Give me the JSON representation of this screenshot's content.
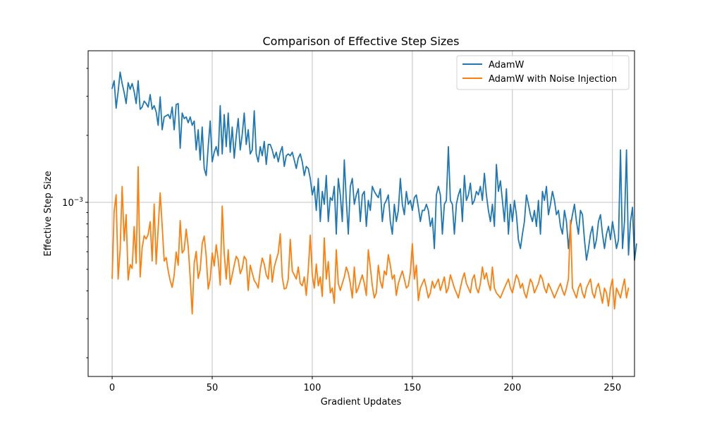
{
  "chart_data": {
    "type": "line",
    "title": "Comparison of Effective Step Sizes",
    "xlabel": "Gradient Updates",
    "ylabel": "Effective Step Size",
    "yscale": "log",
    "xlim": [
      -12,
      261
    ],
    "ylim": [
      0.000165,
      0.0048
    ],
    "x_ticks": [
      0,
      50,
      100,
      150,
      200,
      250
    ],
    "x_tick_labels": [
      "0",
      "50",
      "100",
      "150",
      "200",
      "250"
    ],
    "y_major_ticks": [
      0.001
    ],
    "y_major_tick_labels": [
      "10^-3"
    ],
    "y_minor_ticks": [
      0.0002,
      0.0003,
      0.0004,
      0.0005,
      0.0006,
      0.0007,
      0.0008,
      0.0009,
      0.002,
      0.003,
      0.004
    ],
    "grid": true,
    "legend_position": "top-right",
    "series": [
      {
        "name": "AdamW",
        "color": "#1f77b4",
        "x_start": 0,
        "values": [
          0.00325,
          0.00352,
          0.00265,
          0.00315,
          0.00385,
          0.00342,
          0.00312,
          0.00278,
          0.00345,
          0.00322,
          0.00342,
          0.00315,
          0.00278,
          0.00352,
          0.00262,
          0.00268,
          0.00285,
          0.00278,
          0.00268,
          0.00305,
          0.00262,
          0.00272,
          0.00255,
          0.00222,
          0.00298,
          0.00212,
          0.00242,
          0.00245,
          0.00248,
          0.00238,
          0.00268,
          0.00212,
          0.00275,
          0.00278,
          0.00175,
          0.00252,
          0.00238,
          0.00242,
          0.00228,
          0.00242,
          0.00222,
          0.00232,
          0.00172,
          0.00212,
          0.00155,
          0.00218,
          0.00142,
          0.00132,
          0.00178,
          0.00232,
          0.00152,
          0.00168,
          0.00178,
          0.00162,
          0.00272,
          0.00165,
          0.00248,
          0.00178,
          0.00252,
          0.00168,
          0.00218,
          0.00158,
          0.00198,
          0.00238,
          0.00172,
          0.00202,
          0.00252,
          0.00182,
          0.00212,
          0.00165,
          0.00172,
          0.00258,
          0.00165,
          0.00152,
          0.00178,
          0.00162,
          0.00188,
          0.00148,
          0.00182,
          0.00182,
          0.00172,
          0.00158,
          0.00168,
          0.00152,
          0.00168,
          0.00178,
          0.00145,
          0.00162,
          0.00165,
          0.00162,
          0.00168,
          0.00155,
          0.00142,
          0.00158,
          0.00165,
          0.00152,
          0.00132,
          0.00145,
          0.00142,
          0.00128,
          0.00108,
          0.00118,
          0.00092,
          0.00128,
          0.00082,
          0.00112,
          0.00098,
          0.00132,
          0.00082,
          0.00105,
          0.00102,
          0.00118,
          0.00072,
          0.00128,
          0.00108,
          0.00082,
          0.00155,
          0.00102,
          0.00072,
          0.00118,
          0.00128,
          0.00098,
          0.00108,
          0.00115,
          0.00082,
          0.00108,
          0.00112,
          0.00078,
          0.00102,
          0.00092,
          0.00118,
          0.00112,
          0.00108,
          0.00105,
          0.00115,
          0.00082,
          0.00098,
          0.00102,
          0.00108,
          0.00082,
          0.00072,
          0.00098,
          0.00082,
          0.00092,
          0.00128,
          0.00098,
          0.00088,
          0.00112,
          0.00098,
          0.00102,
          0.00092,
          0.00105,
          0.00108,
          0.00095,
          0.00082,
          0.00092,
          0.00092,
          0.00098,
          0.00092,
          0.00078,
          0.00085,
          0.00062,
          0.00108,
          0.00118,
          0.00108,
          0.00072,
          0.00098,
          0.00102,
          0.00178,
          0.00102,
          0.00098,
          0.00072,
          0.00098,
          0.00108,
          0.00115,
          0.00082,
          0.00132,
          0.00102,
          0.00108,
          0.00122,
          0.00098,
          0.00102,
          0.00112,
          0.00108,
          0.00118,
          0.00102,
          0.00135,
          0.00108,
          0.00092,
          0.00082,
          0.00098,
          0.00078,
          0.00148,
          0.00112,
          0.00125,
          0.00102,
          0.00082,
          0.00115,
          0.00072,
          0.00098,
          0.00082,
          0.00102,
          0.00088,
          0.00068,
          0.00062,
          0.00072,
          0.00082,
          0.00108,
          0.00098,
          0.00088,
          0.00082,
          0.00092,
          0.00078,
          0.00102,
          0.00072,
          0.00112,
          0.00102,
          0.00118,
          0.00088,
          0.00098,
          0.00112,
          0.00102,
          0.00088,
          0.00092,
          0.00078,
          0.00072,
          0.00092,
          0.00082,
          0.00062,
          0.00078,
          0.00088,
          0.00098,
          0.00082,
          0.00072,
          0.00092,
          0.00088,
          0.00068,
          0.00055,
          0.00062,
          0.00072,
          0.00078,
          0.00062,
          0.00068,
          0.00082,
          0.00088,
          0.00072,
          0.00062,
          0.00072,
          0.00078,
          0.00068,
          0.00082,
          0.00072,
          0.00062,
          0.00068,
          0.00172,
          0.00062,
          0.00082,
          0.00172,
          0.00058,
          0.00082,
          0.00095,
          0.00055,
          0.00065
        ],
        "values_overridden": true
      },
      {
        "name": "AdamW with Noise Injection",
        "color": "#ff7f0e",
        "x_start": 0,
        "values": [
          0.000455,
          0.000912,
          0.001082,
          0.000452,
          0.000612,
          0.001178,
          0.000672,
          0.000882,
          0.000448,
          0.000525,
          0.000505,
          0.000778,
          0.000532,
          0.001445,
          0.000462,
          0.000625,
          0.000708,
          0.000685,
          0.000718,
          0.000818,
          0.000545,
          0.000982,
          0.000528,
          0.000762,
          0.001102,
          0.000785,
          0.000545,
          0.000565,
          0.000492,
          0.000445,
          0.000415,
          0.000472,
          0.000598,
          0.000522,
          0.000828,
          0.000592,
          0.000612,
          0.000758,
          0.000632,
          0.000462,
          0.000315,
          0.000532,
          0.000602,
          0.000455,
          0.000498,
          0.000652,
          0.000705,
          0.000572,
          0.000408,
          0.000452,
          0.000592,
          0.000518,
          0.000645,
          0.000552,
          0.000425,
          0.000962,
          0.000592,
          0.000452,
          0.000612,
          0.000428,
          0.000472,
          0.000522,
          0.000572,
          0.000552,
          0.000478,
          0.000505,
          0.000572,
          0.000552,
          0.000402,
          0.000522,
          0.000482,
          0.000445,
          0.000432,
          0.000412,
          0.000498,
          0.000562,
          0.000528,
          0.000472,
          0.000452,
          0.000582,
          0.000438,
          0.000512,
          0.000552,
          0.000592,
          0.000722,
          0.000462,
          0.000408,
          0.000412,
          0.000452,
          0.000682,
          0.000492,
          0.000472,
          0.000452,
          0.000512,
          0.000432,
          0.000422,
          0.000462,
          0.000382,
          0.000498,
          0.000712,
          0.000472,
          0.000412,
          0.000528,
          0.000422,
          0.000462,
          0.000378,
          0.000692,
          0.000452,
          0.000542,
          0.000392,
          0.000412,
          0.000352,
          0.000612,
          0.000432,
          0.000402,
          0.000432,
          0.000462,
          0.000512,
          0.000482,
          0.000432,
          0.000372,
          0.000512,
          0.000392,
          0.000412,
          0.000442,
          0.000472,
          0.000432,
          0.000382,
          0.000612,
          0.000512,
          0.000422,
          0.000372,
          0.000392,
          0.000522,
          0.000442,
          0.000412,
          0.000492,
          0.000472,
          0.000582,
          0.000522,
          0.000452,
          0.000472,
          0.000382,
          0.000432,
          0.000462,
          0.000492,
          0.000452,
          0.000412,
          0.000422,
          0.000482,
          0.000652,
          0.000452,
          0.000522,
          0.000362,
          0.000412,
          0.000432,
          0.000452,
          0.000412,
          0.000372,
          0.000392,
          0.000442,
          0.000412,
          0.000432,
          0.000452,
          0.000402,
          0.000432,
          0.000462,
          0.000392,
          0.000412,
          0.000472,
          0.000442,
          0.000412,
          0.000392,
          0.000372,
          0.000412,
          0.000452,
          0.000482,
          0.000432,
          0.000412,
          0.000392,
          0.000452,
          0.000472,
          0.000412,
          0.000392,
          0.000432,
          0.000512,
          0.000452,
          0.000482,
          0.000432,
          0.000402,
          0.000512,
          0.000412,
          0.000392,
          0.000382,
          0.000372,
          0.000392,
          0.000412,
          0.000432,
          0.000452,
          0.000412,
          0.000392,
          0.000432,
          0.000472,
          0.000452,
          0.000412,
          0.000432,
          0.000392,
          0.000372,
          0.000412,
          0.000452,
          0.000432,
          0.000392,
          0.000412,
          0.000432,
          0.000472,
          0.000452,
          0.000412,
          0.000392,
          0.000432,
          0.000412,
          0.000392,
          0.000372,
          0.000392,
          0.000412,
          0.000432,
          0.000402,
          0.000382,
          0.000412,
          0.000452,
          0.000832,
          0.000412,
          0.000392,
          0.000372,
          0.000412,
          0.000432,
          0.000392,
          0.000372,
          0.000412,
          0.000432,
          0.000452,
          0.000392,
          0.000372,
          0.000412,
          0.000432,
          0.000392,
          0.000352,
          0.000412,
          0.000392,
          0.000342,
          0.000412,
          0.000452,
          0.000332,
          0.000412,
          0.000392,
          0.000372,
          0.000412,
          0.000452,
          0.000372,
          0.000412
        ]
      }
    ]
  }
}
